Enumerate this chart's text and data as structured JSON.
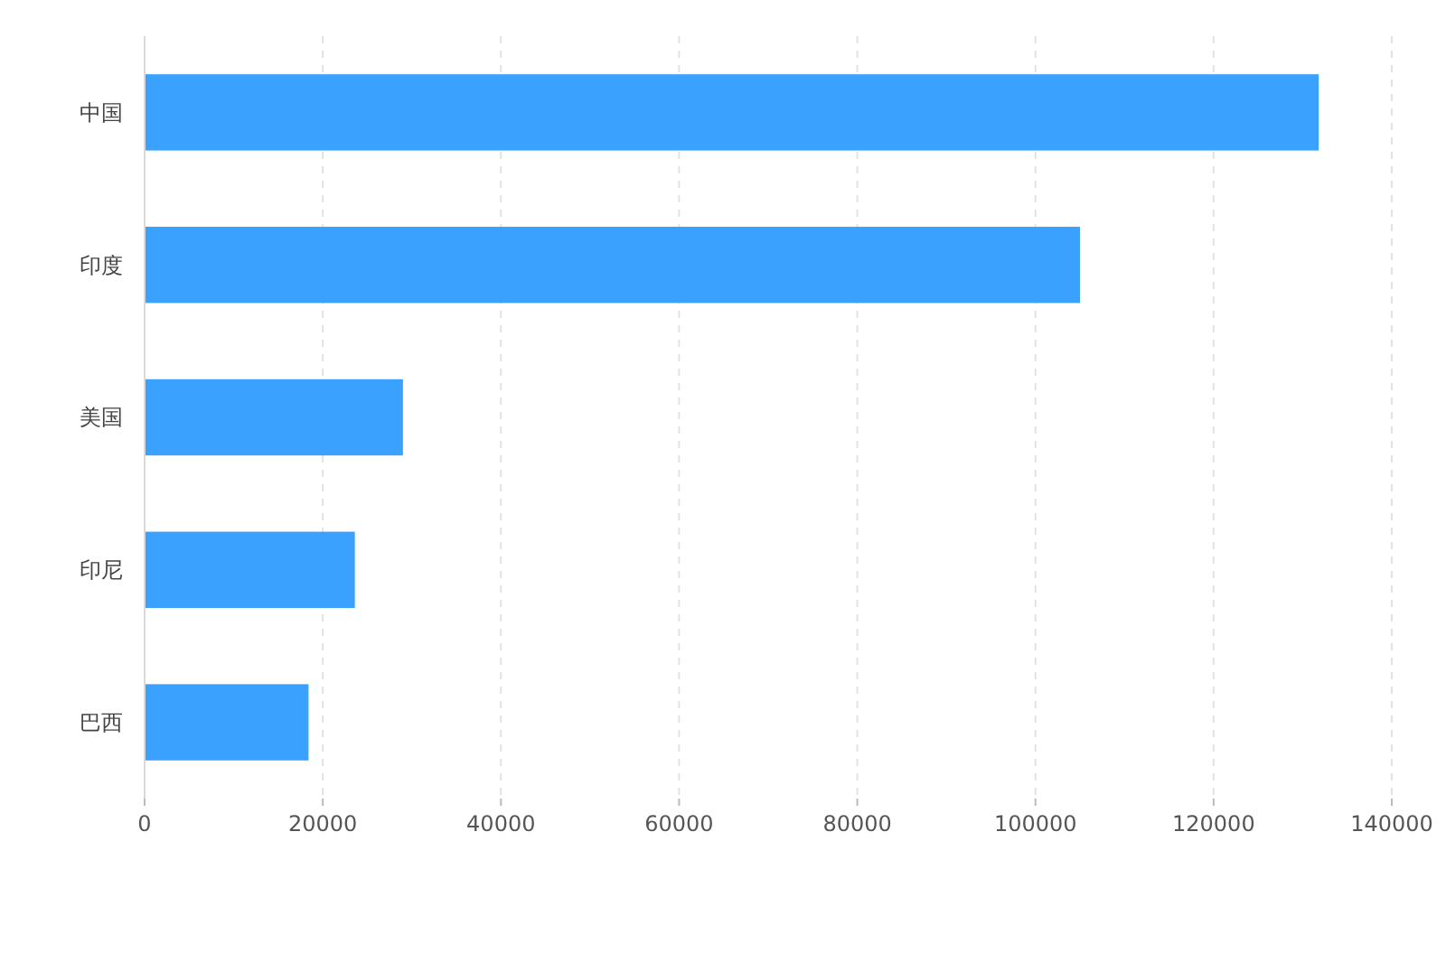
{
  "chart_data": {
    "type": "bar",
    "orientation": "horizontal",
    "categories": [
      "中国",
      "印度",
      "美国",
      "印尼",
      "巴西"
    ],
    "values": [
      131800,
      105000,
      29000,
      23600,
      18400
    ],
    "color": "#3aa1ff",
    "xlim": [
      0,
      140000
    ],
    "xticks": [
      0,
      20000,
      40000,
      60000,
      80000,
      100000,
      120000,
      140000
    ],
    "grid": "x"
  }
}
